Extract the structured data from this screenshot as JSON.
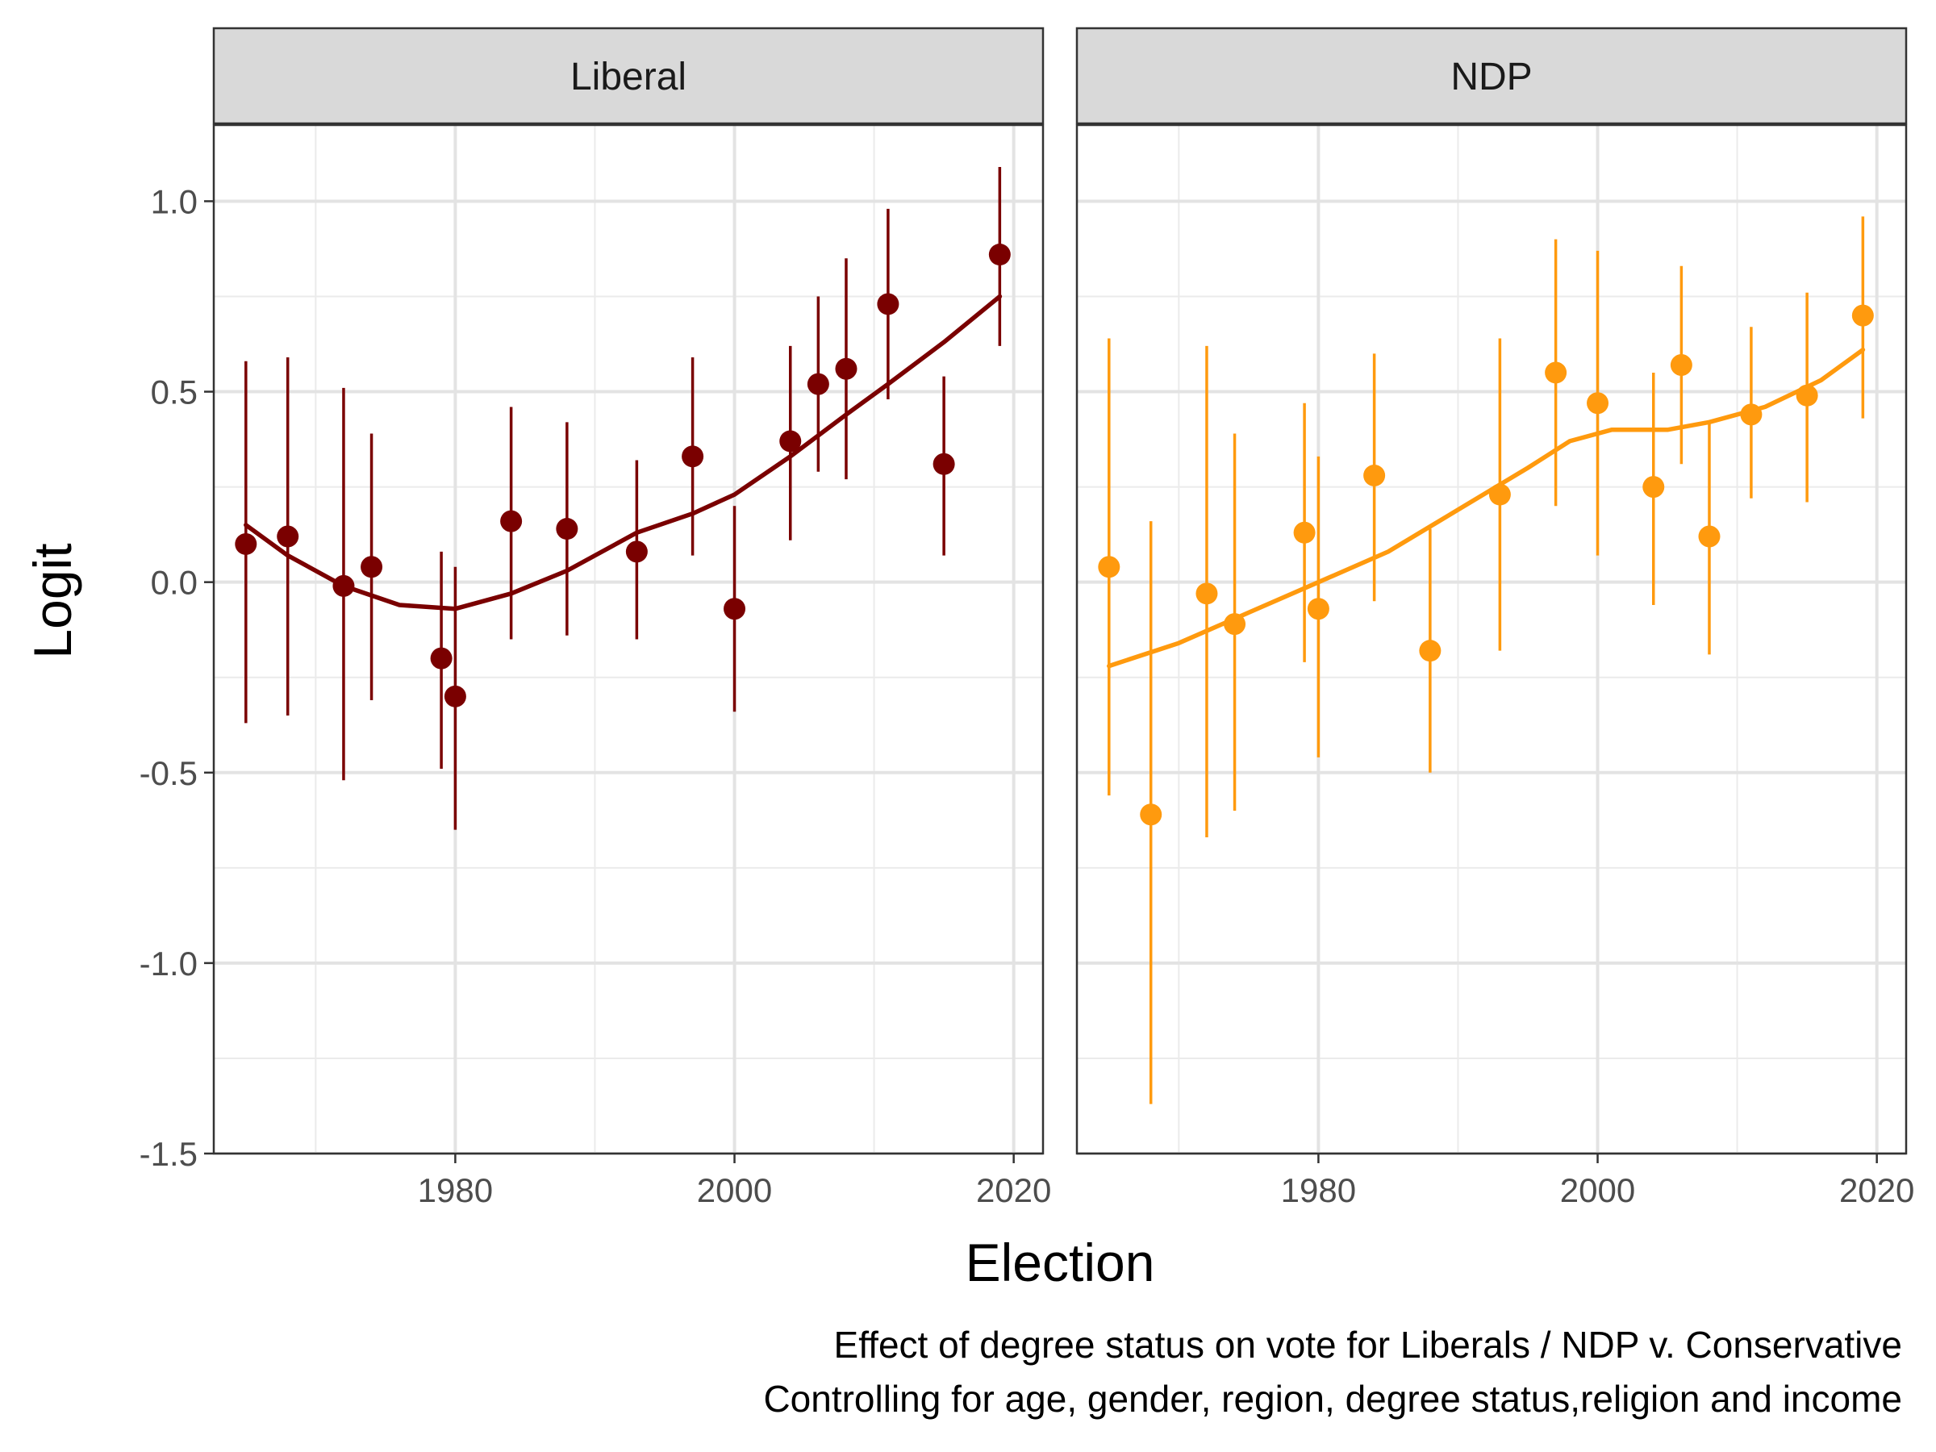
{
  "chart_data": {
    "type": "scatter",
    "xlabel": "Election",
    "ylabel": "Logit",
    "caption_lines": [
      "Effect of degree status on vote for Liberals / NDP v. Conservative",
      "Controlling for age, gender, region, degree status,religion and income"
    ],
    "xlim": [
      1962.7,
      2022.1
    ],
    "ylim": [
      -1.5,
      1.2
    ],
    "x_ticks": [
      1980,
      2000,
      2020
    ],
    "x_tick_labels": [
      "1980",
      "2000",
      "2020"
    ],
    "y_ticks": [
      -1.5,
      -1.0,
      -0.5,
      0.0,
      0.5,
      1.0
    ],
    "y_tick_labels": [
      "-1.5",
      "-1.0",
      "-0.5",
      "0.0",
      "0.5",
      "1.0"
    ],
    "grid": true,
    "panels": [
      {
        "label": "Liberal",
        "color": "#7a0000",
        "points": [
          {
            "x": 1965,
            "y": 0.1,
            "lo": -0.37,
            "hi": 0.58
          },
          {
            "x": 1968,
            "y": 0.12,
            "lo": -0.35,
            "hi": 0.59
          },
          {
            "x": 1972,
            "y": -0.01,
            "lo": -0.52,
            "hi": 0.51
          },
          {
            "x": 1974,
            "y": 0.04,
            "lo": -0.31,
            "hi": 0.39
          },
          {
            "x": 1979,
            "y": -0.2,
            "lo": -0.49,
            "hi": 0.08
          },
          {
            "x": 1980,
            "y": -0.3,
            "lo": -0.65,
            "hi": 0.04
          },
          {
            "x": 1984,
            "y": 0.16,
            "lo": -0.15,
            "hi": 0.46
          },
          {
            "x": 1988,
            "y": 0.14,
            "lo": -0.14,
            "hi": 0.42
          },
          {
            "x": 1993,
            "y": 0.08,
            "lo": -0.15,
            "hi": 0.32
          },
          {
            "x": 1997,
            "y": 0.33,
            "lo": 0.07,
            "hi": 0.59
          },
          {
            "x": 2000,
            "y": -0.07,
            "lo": -0.34,
            "hi": 0.2
          },
          {
            "x": 2004,
            "y": 0.37,
            "lo": 0.11,
            "hi": 0.62
          },
          {
            "x": 2006,
            "y": 0.52,
            "lo": 0.29,
            "hi": 0.75
          },
          {
            "x": 2008,
            "y": 0.56,
            "lo": 0.27,
            "hi": 0.85
          },
          {
            "x": 2011,
            "y": 0.73,
            "lo": 0.48,
            "hi": 0.98
          },
          {
            "x": 2015,
            "y": 0.31,
            "lo": 0.07,
            "hi": 0.54
          },
          {
            "x": 2019,
            "y": 0.86,
            "lo": 0.62,
            "hi": 1.09
          }
        ],
        "smooth": [
          {
            "x": 1965,
            "y": 0.15
          },
          {
            "x": 1968,
            "y": 0.07
          },
          {
            "x": 1972,
            "y": -0.01
          },
          {
            "x": 1976,
            "y": -0.06
          },
          {
            "x": 1980,
            "y": -0.07
          },
          {
            "x": 1984,
            "y": -0.03
          },
          {
            "x": 1988,
            "y": 0.03
          },
          {
            "x": 1993,
            "y": 0.13
          },
          {
            "x": 1997,
            "y": 0.18
          },
          {
            "x": 2000,
            "y": 0.23
          },
          {
            "x": 2004,
            "y": 0.33
          },
          {
            "x": 2008,
            "y": 0.44
          },
          {
            "x": 2011,
            "y": 0.52
          },
          {
            "x": 2015,
            "y": 0.63
          },
          {
            "x": 2019,
            "y": 0.75
          }
        ]
      },
      {
        "label": "NDP",
        "color": "#ff9a0e",
        "points": [
          {
            "x": 1965,
            "y": 0.04,
            "lo": -0.56,
            "hi": 0.64
          },
          {
            "x": 1968,
            "y": -0.61,
            "lo": -1.37,
            "hi": 0.16
          },
          {
            "x": 1972,
            "y": -0.03,
            "lo": -0.67,
            "hi": 0.62
          },
          {
            "x": 1974,
            "y": -0.11,
            "lo": -0.6,
            "hi": 0.39
          },
          {
            "x": 1979,
            "y": 0.13,
            "lo": -0.21,
            "hi": 0.47
          },
          {
            "x": 1980,
            "y": -0.07,
            "lo": -0.46,
            "hi": 0.33
          },
          {
            "x": 1984,
            "y": 0.28,
            "lo": -0.05,
            "hi": 0.6
          },
          {
            "x": 1988,
            "y": -0.18,
            "lo": -0.5,
            "hi": 0.14
          },
          {
            "x": 1993,
            "y": 0.23,
            "lo": -0.18,
            "hi": 0.64
          },
          {
            "x": 1997,
            "y": 0.55,
            "lo": 0.2,
            "hi": 0.9
          },
          {
            "x": 2000,
            "y": 0.47,
            "lo": 0.07,
            "hi": 0.87
          },
          {
            "x": 2004,
            "y": 0.25,
            "lo": -0.06,
            "hi": 0.55
          },
          {
            "x": 2006,
            "y": 0.57,
            "lo": 0.31,
            "hi": 0.83
          },
          {
            "x": 2008,
            "y": 0.12,
            "lo": -0.19,
            "hi": 0.42
          },
          {
            "x": 2011,
            "y": 0.44,
            "lo": 0.22,
            "hi": 0.67
          },
          {
            "x": 2015,
            "y": 0.49,
            "lo": 0.21,
            "hi": 0.76
          },
          {
            "x": 2019,
            "y": 0.7,
            "lo": 0.43,
            "hi": 0.96
          }
        ],
        "smooth": [
          {
            "x": 1965,
            "y": -0.22
          },
          {
            "x": 1970,
            "y": -0.16
          },
          {
            "x": 1975,
            "y": -0.08
          },
          {
            "x": 1980,
            "y": 0.0
          },
          {
            "x": 1985,
            "y": 0.08
          },
          {
            "x": 1990,
            "y": 0.19
          },
          {
            "x": 1995,
            "y": 0.3
          },
          {
            "x": 1998,
            "y": 0.37
          },
          {
            "x": 2001,
            "y": 0.4
          },
          {
            "x": 2005,
            "y": 0.4
          },
          {
            "x": 2008,
            "y": 0.42
          },
          {
            "x": 2012,
            "y": 0.46
          },
          {
            "x": 2016,
            "y": 0.53
          },
          {
            "x": 2019,
            "y": 0.61
          }
        ]
      }
    ]
  }
}
